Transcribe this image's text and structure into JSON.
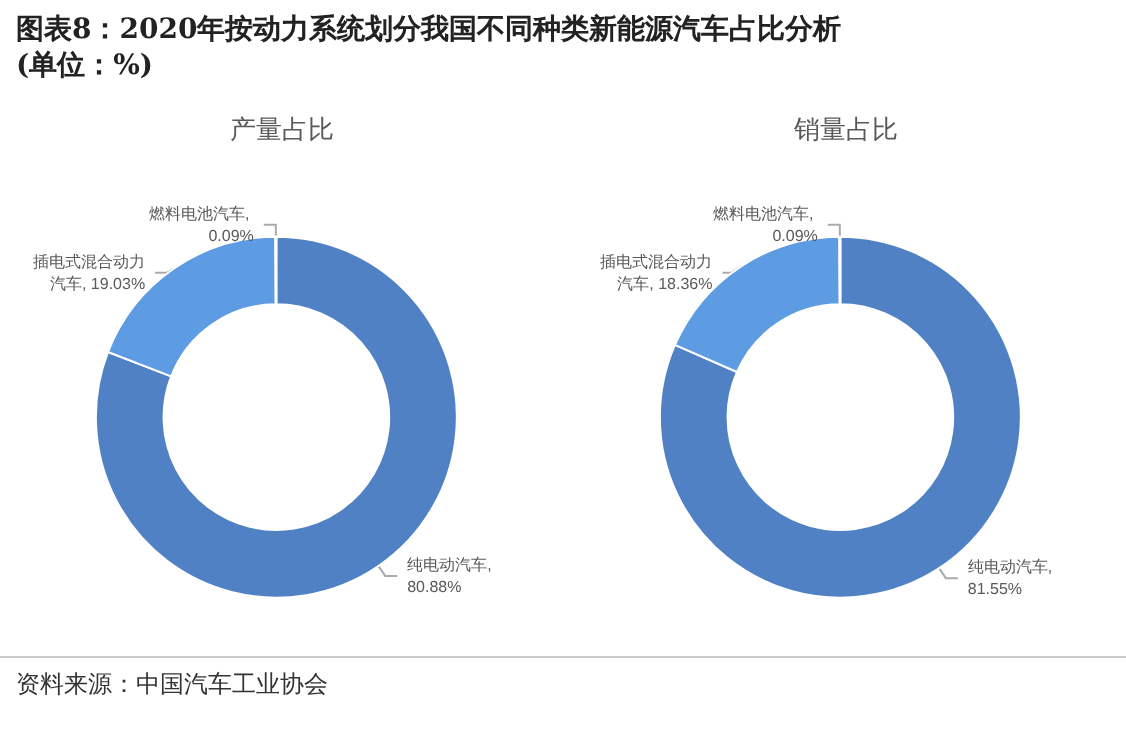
{
  "chart_data": [
    {
      "type": "donut",
      "title": "产量占比",
      "categories": [
        "纯电动汽车",
        "插电式混合动力汽车",
        "燃料电池汽车"
      ],
      "values": [
        80.88,
        19.03,
        0.09
      ],
      "colors": [
        "#4f81c4",
        "#5d9be3",
        "#3f6fb5"
      ],
      "value_labels": [
        ", 80.88%",
        ", 19.03%",
        ", 0.09%"
      ],
      "legend": false,
      "annotations": [
        "图表8：2020年按动力系统划分我国不同种类新能源汽车占比分析(单位：%)",
        "资料来源：中国汽车工业协会"
      ]
    },
    {
      "type": "donut",
      "title": "销量占比",
      "categories": [
        "纯电动汽车",
        "插电式混合动力汽车",
        "燃料电池汽车"
      ],
      "values": [
        81.55,
        18.36,
        0.09
      ],
      "colors": [
        "#4f81c4",
        "#5d9be3",
        "#3f6fb5"
      ],
      "value_labels": [
        ", 81.55%",
        ", 18.36%",
        ", 0.09%"
      ],
      "legend": false
    }
  ]
}
